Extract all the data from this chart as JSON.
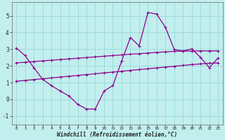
{
  "x": [
    0,
    1,
    2,
    3,
    4,
    5,
    6,
    7,
    8,
    9,
    10,
    11,
    12,
    13,
    14,
    15,
    16,
    17,
    18,
    19,
    20,
    21,
    22,
    23
  ],
  "line1": [
    3.07,
    2.62,
    1.9,
    1.2,
    0.82,
    0.5,
    0.2,
    -0.3,
    -0.58,
    -0.58,
    0.5,
    0.82,
    2.28,
    3.7,
    3.2,
    5.2,
    5.1,
    4.3,
    2.98,
    2.9,
    3.02,
    2.5,
    1.9,
    2.48
  ],
  "line2_y": [
    2.18,
    2.22,
    2.26,
    2.3,
    2.34,
    2.38,
    2.42,
    2.46,
    2.5,
    2.54,
    2.58,
    2.62,
    2.66,
    2.7,
    2.73,
    2.77,
    2.81,
    2.84,
    2.87,
    2.88,
    2.89,
    2.9,
    2.9,
    2.9
  ],
  "line3_y": [
    1.08,
    1.13,
    1.18,
    1.23,
    1.28,
    1.33,
    1.38,
    1.43,
    1.48,
    1.53,
    1.58,
    1.63,
    1.68,
    1.73,
    1.78,
    1.83,
    1.88,
    1.93,
    1.98,
    2.03,
    2.08,
    2.12,
    2.16,
    2.18
  ],
  "color": "#8b008b",
  "bg_color": "#c2eeee",
  "grid_color": "#9ddcdc",
  "xlabel": "Windchill (Refroidissement éolien,°C)",
  "xlim": [
    -0.5,
    23.5
  ],
  "ylim": [
    -1.5,
    5.8
  ],
  "yticks": [
    -1,
    0,
    1,
    2,
    3,
    4,
    5
  ],
  "xticks": [
    0,
    1,
    2,
    3,
    4,
    5,
    6,
    7,
    8,
    9,
    10,
    11,
    12,
    13,
    14,
    15,
    16,
    17,
    18,
    19,
    20,
    21,
    22,
    23
  ],
  "xtick_labels": [
    "0",
    "1",
    "2",
    "3",
    "4",
    "5",
    "6",
    "7",
    "8",
    "9",
    "10",
    "11",
    "12",
    "13",
    "14",
    "15",
    "16",
    "17",
    "18",
    "19",
    "20",
    "21",
    "22",
    "23"
  ]
}
